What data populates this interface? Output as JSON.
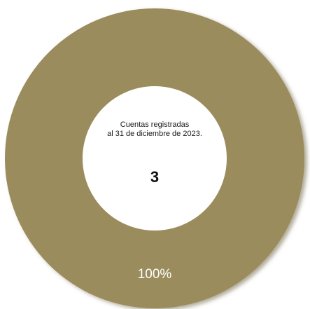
{
  "chart_data": {
    "type": "pie",
    "variant": "donut",
    "categories": [
      "Cuentas registradas"
    ],
    "values": [
      100
    ],
    "data_labels": [
      "100%"
    ],
    "center_text": {
      "caption_line1": "Cuentas registradas",
      "caption_line2": "al 31 de diciembre de 2023.",
      "value": "3"
    },
    "legend": "none"
  },
  "colors": {
    "slice": "#9b8c5d",
    "hole": "#ffffff",
    "label": "#ffffff",
    "shadow": "#6f6648"
  }
}
